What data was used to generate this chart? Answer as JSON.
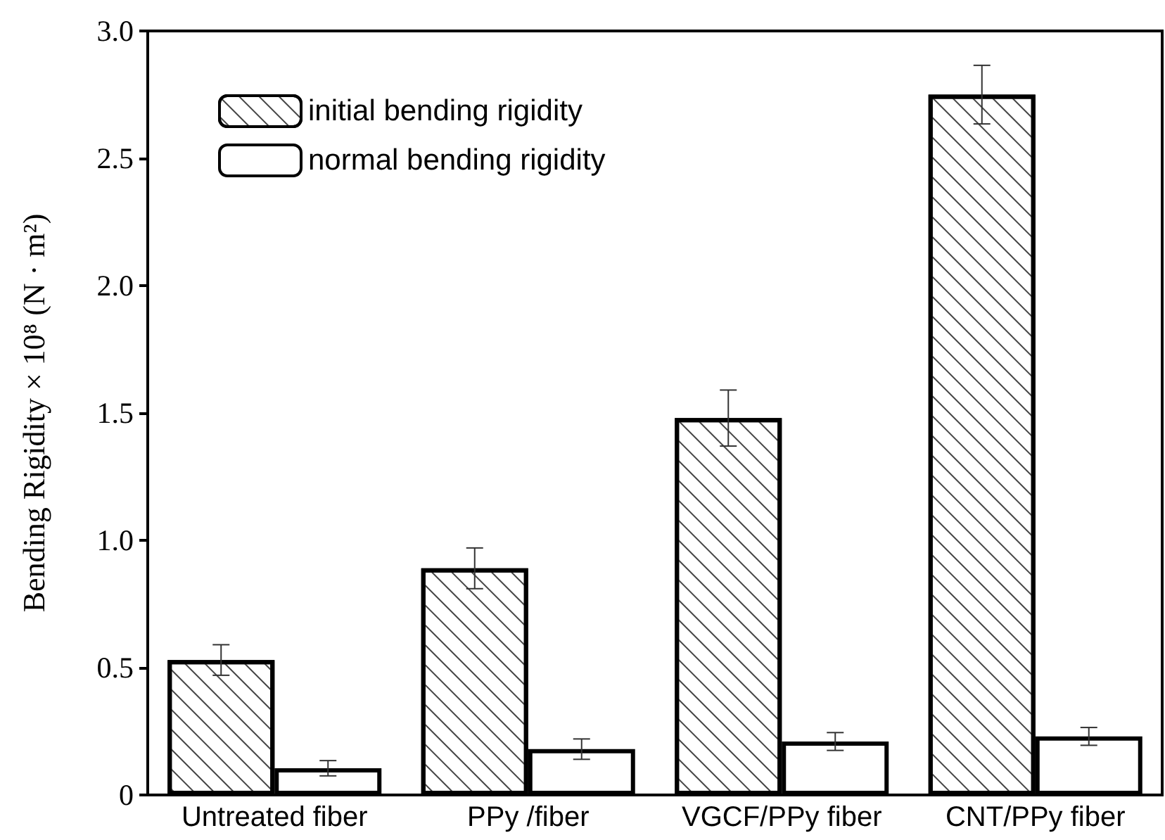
{
  "chart_data": {
    "type": "bar",
    "ylabel": "Bending Rigidity × 10⁸ (N · m²)",
    "categories": [
      "Untreated fiber",
      "PPy /fiber",
      "VGCF/PPy fiber",
      "CNT/PPy fiber"
    ],
    "series": [
      {
        "name": "initial bending rigidity",
        "color": "#ffffff",
        "values": [
          0.53,
          0.89,
          1.48,
          2.75
        ],
        "errors": [
          0.06,
          0.08,
          0.11,
          0.115
        ]
      },
      {
        "name": "normal bending rigidity",
        "color": "#ffffff",
        "values": [
          0.105,
          0.18,
          0.21,
          0.23
        ],
        "errors": [
          0.03,
          0.04,
          0.035,
          0.035
        ]
      }
    ],
    "ylim": [
      0,
      3.0
    ],
    "yticks": [
      0,
      {
        "value": 0.5,
        "label": "0.5"
      },
      {
        "value": 1.0,
        "label": "1.0"
      },
      {
        "value": 1.5,
        "label": "1.5"
      },
      {
        "value": 2.0,
        "label": "2.0"
      },
      {
        "value": 2.5,
        "label": "2.5"
      },
      {
        "value": 3.0,
        "label": "3.0"
      }
    ],
    "grid": false,
    "legend": "top left"
  }
}
